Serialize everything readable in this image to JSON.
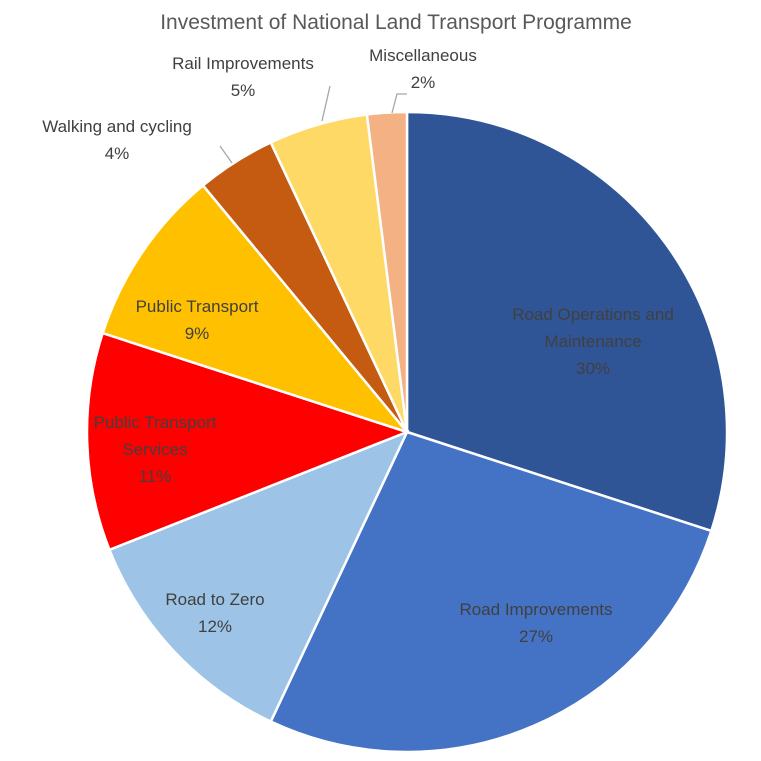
{
  "chart_data": {
    "type": "pie",
    "title": "Investment of National Land Transport Programme",
    "start_angle": "12 o'clock",
    "direction": "clockwise",
    "slices": [
      {
        "label": [
          "Road Operations and",
          "Maintenance"
        ],
        "value": 30,
        "pct": "30%",
        "color": "#2F5597"
      },
      {
        "label": [
          "Road Improvements"
        ],
        "value": 27,
        "pct": "27%",
        "color": "#4472C4"
      },
      {
        "label": [
          "Road to Zero"
        ],
        "value": 12,
        "pct": "12%",
        "color": "#9DC3E6"
      },
      {
        "label": [
          "Public Transport",
          "Services"
        ],
        "value": 11,
        "pct": "11%",
        "color": "#FF0000"
      },
      {
        "label": [
          "Public Transport"
        ],
        "value": 9,
        "pct": "9%",
        "color": "#FFC000"
      },
      {
        "label": [
          "Walking and cycling"
        ],
        "value": 4,
        "pct": "4%",
        "color": "#C55A11"
      },
      {
        "label": [
          "Rail Improvements"
        ],
        "value": 5,
        "pct": "5%",
        "color": "#FFD966"
      },
      {
        "label": [
          "Miscellaneous"
        ],
        "value": 2,
        "pct": "2%",
        "color": "#F4B183"
      }
    ]
  }
}
